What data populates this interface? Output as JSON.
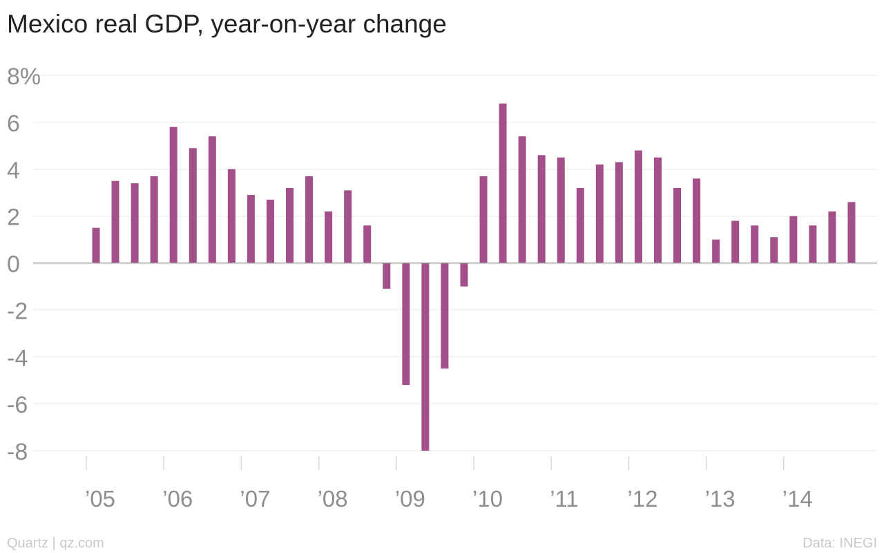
{
  "chart_data": {
    "type": "bar",
    "title": "Mexico real GDP, year-on-year change",
    "xlabel": "",
    "ylabel": "",
    "ylim": [
      -8,
      8
    ],
    "y_ticks": [
      {
        "value": 8,
        "label": "8%"
      },
      {
        "value": 6,
        "label": "6"
      },
      {
        "value": 4,
        "label": "4"
      },
      {
        "value": 2,
        "label": "2"
      },
      {
        "value": 0,
        "label": "0"
      },
      {
        "value": -2,
        "label": "-2"
      },
      {
        "value": -4,
        "label": "-4"
      },
      {
        "value": -6,
        "label": "-6"
      },
      {
        "value": -8,
        "label": "-8"
      }
    ],
    "x_ticks": [
      "’05",
      "’06",
      "’07",
      "’08",
      "’09",
      "’10",
      "’11",
      "’12",
      "’13",
      "’14"
    ],
    "first_year": 2005,
    "last_year": 2014,
    "categories": [
      "2005 Q1",
      "2005 Q2",
      "2005 Q3",
      "2005 Q4",
      "2006 Q1",
      "2006 Q2",
      "2006 Q3",
      "2006 Q4",
      "2007 Q1",
      "2007 Q2",
      "2007 Q3",
      "2007 Q4",
      "2008 Q1",
      "2008 Q2",
      "2008 Q3",
      "2008 Q4",
      "2009 Q1",
      "2009 Q2",
      "2009 Q3",
      "2009 Q4",
      "2010 Q1",
      "2010 Q2",
      "2010 Q3",
      "2010 Q4",
      "2011 Q1",
      "2011 Q2",
      "2011 Q3",
      "2011 Q4",
      "2012 Q1",
      "2012 Q2",
      "2012 Q3",
      "2012 Q4",
      "2013 Q1",
      "2013 Q2",
      "2013 Q3",
      "2013 Q4",
      "2014 Q1",
      "2014 Q2",
      "2014 Q3",
      "2014 Q4"
    ],
    "values": [
      1.5,
      3.5,
      3.4,
      3.7,
      5.8,
      4.9,
      5.4,
      4.0,
      2.9,
      2.7,
      3.2,
      3.7,
      2.2,
      3.1,
      1.6,
      -1.1,
      -5.2,
      -8.0,
      -4.5,
      -1.0,
      3.7,
      6.8,
      5.4,
      4.6,
      4.5,
      3.2,
      4.2,
      4.3,
      4.8,
      4.5,
      3.2,
      3.6,
      1.0,
      1.8,
      1.6,
      1.1,
      2.0,
      1.6,
      2.2,
      2.6
    ],
    "grid": true,
    "bar_color": "#a3508a",
    "grid_color": "#eeeeee",
    "axis_color": "#999999",
    "label_color": "#8e8e8e"
  },
  "footer": {
    "credit": "Quartz | qz.com",
    "source": "Data: INEGI"
  }
}
